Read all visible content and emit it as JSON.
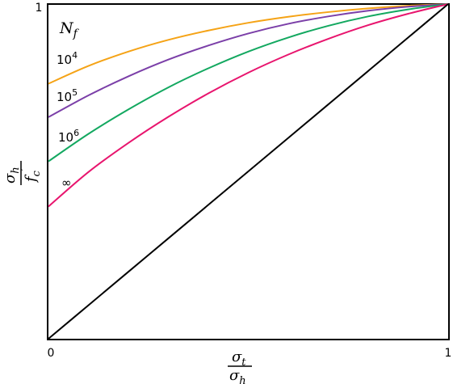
{
  "chart_data": {
    "type": "line",
    "title": "",
    "xlabel": {
      "num": "σt",
      "num_base": "σ",
      "num_sub": "t",
      "den_base": "σ",
      "den_sub": "h"
    },
    "ylabel": {
      "num_base": "σ",
      "num_sub": "h",
      "den_base": "f",
      "den_sub": "c",
      "den_prime": "′"
    },
    "xlim": [
      0,
      1
    ],
    "ylim": [
      0,
      1
    ],
    "xticks": [
      "0",
      "1"
    ],
    "yticks": [
      "1"
    ],
    "grid": false,
    "legend_title": {
      "base": "N",
      "sub": "f"
    },
    "x": [
      0,
      0.1,
      0.2,
      0.3,
      0.4,
      0.5,
      0.6,
      0.7,
      0.8,
      0.9,
      1.0
    ],
    "series": [
      {
        "name": "10^4",
        "label_base": "10",
        "label_exp": "4",
        "color": "#F5A316",
        "values": [
          0.762,
          0.815,
          0.858,
          0.893,
          0.921,
          0.944,
          0.962,
          0.976,
          0.987,
          0.995,
          1.0
        ]
      },
      {
        "name": "10^5",
        "label_base": "10",
        "label_exp": "5",
        "color": "#7B3FA8",
        "values": [
          0.662,
          0.727,
          0.784,
          0.834,
          0.876,
          0.912,
          0.941,
          0.963,
          0.98,
          0.992,
          1.0
        ]
      },
      {
        "name": "10^6",
        "label_base": "10",
        "label_exp": "6",
        "color": "#13A860",
        "values": [
          0.53,
          0.612,
          0.685,
          0.751,
          0.808,
          0.858,
          0.9,
          0.935,
          0.963,
          0.984,
          1.0
        ]
      },
      {
        "name": "∞",
        "label_base": "∞",
        "label_exp": "",
        "color": "#E8156E",
        "values": [
          0.395,
          0.498,
          0.585,
          0.663,
          0.733,
          0.795,
          0.849,
          0.896,
          0.937,
          0.971,
          1.0
        ]
      },
      {
        "name": "",
        "label_base": "",
        "label_exp": "",
        "color": "#000000",
        "values": [
          0,
          0.1,
          0.2,
          0.3,
          0.4,
          0.5,
          0.6,
          0.7,
          0.8,
          0.9,
          1.0
        ]
      }
    ]
  }
}
